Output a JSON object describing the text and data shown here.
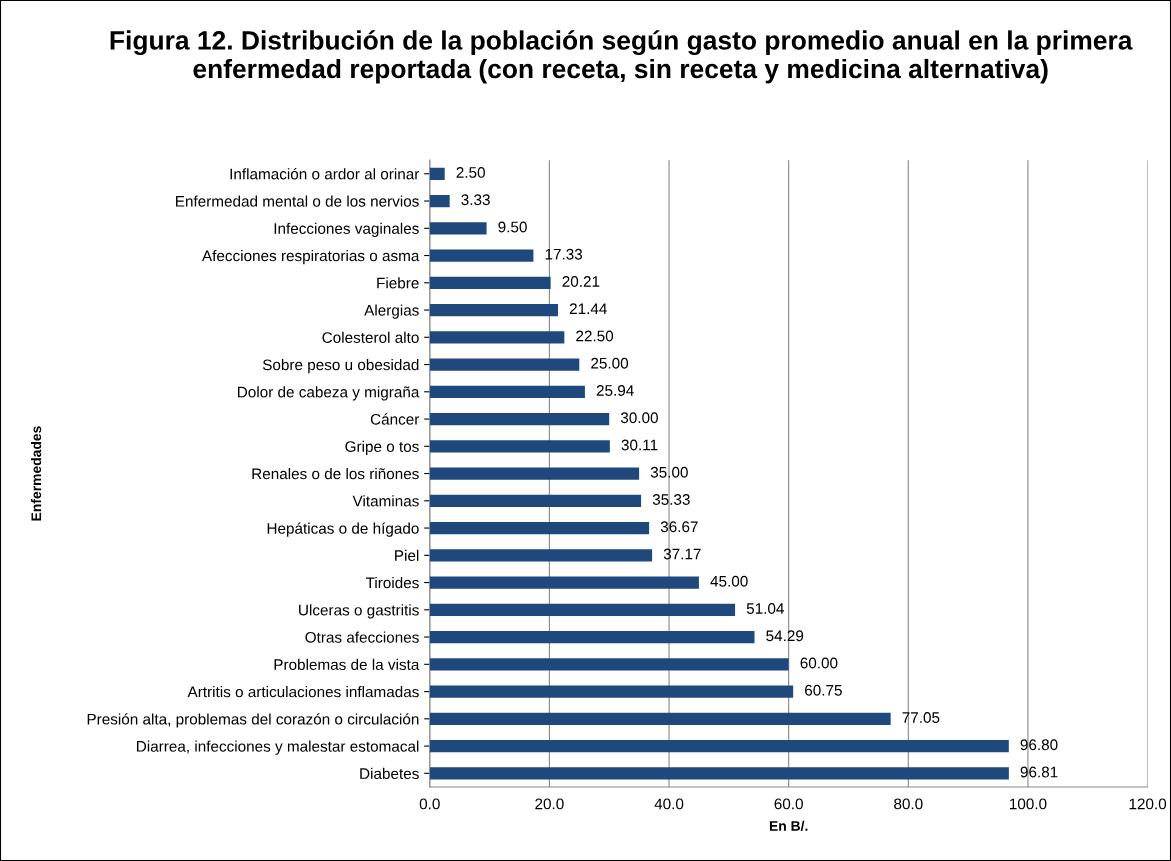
{
  "chart_data": {
    "type": "bar",
    "orientation": "horizontal",
    "title": "Figura 12. Distribución de la población según gasto promedio anual en la primera enfermedad reportada (con receta, sin receta y medicina alternativa)",
    "xlabel": "En B/.",
    "ylabel": "Enfermedades",
    "categories": [
      "Inflamación o ardor al orinar",
      "Enfermedad mental o de los nervios",
      "Infecciones vaginales",
      "Afecciones respiratorias o asma",
      "Fiebre",
      "Alergias",
      "Colesterol alto",
      "Sobre peso u obesidad",
      "Dolor de cabeza y migraña",
      "Cáncer",
      "Gripe o tos",
      "Renales o de los riñones",
      "Vitaminas",
      "Hepáticas o de hígado",
      "Piel",
      "Tiroides",
      "Ulceras o gastritis",
      "Otras afecciones",
      "Problemas de la vista",
      "Artritis o articulaciones inflamadas",
      "Presión alta, problemas del corazón o circulación",
      "Diarrea, infecciones y malestar estomacal",
      "Diabetes"
    ],
    "values": [
      2.5,
      3.33,
      9.5,
      17.33,
      20.21,
      21.44,
      22.5,
      25.0,
      25.94,
      30.0,
      30.11,
      35.0,
      35.33,
      36.67,
      37.17,
      45.0,
      51.04,
      54.29,
      60.0,
      60.75,
      77.05,
      96.8,
      96.81
    ],
    "value_labels": [
      "2.50",
      "3.33",
      "9.50",
      "17.33",
      "20.21",
      "21.44",
      "22.50",
      "25.00",
      "25.94",
      "30.00",
      "30.11",
      "35.00",
      "35.33",
      "36.67",
      "37.17",
      "45.00",
      "51.04",
      "54.29",
      "60.00",
      "60.75",
      "77.05",
      "96.80",
      "96.81"
    ],
    "color": "#1f497d",
    "xlim": [
      0,
      120
    ],
    "xticks": [
      {
        "value": 0,
        "label": "0.0"
      },
      {
        "value": 20,
        "label": "20.0"
      },
      {
        "value": 40,
        "label": "40.0"
      },
      {
        "value": 60,
        "label": "60.0"
      },
      {
        "value": 80,
        "label": "80.0"
      },
      {
        "value": 100,
        "label": "100.0"
      },
      {
        "value": 120,
        "label": "120.0"
      }
    ],
    "grid": "x"
  }
}
